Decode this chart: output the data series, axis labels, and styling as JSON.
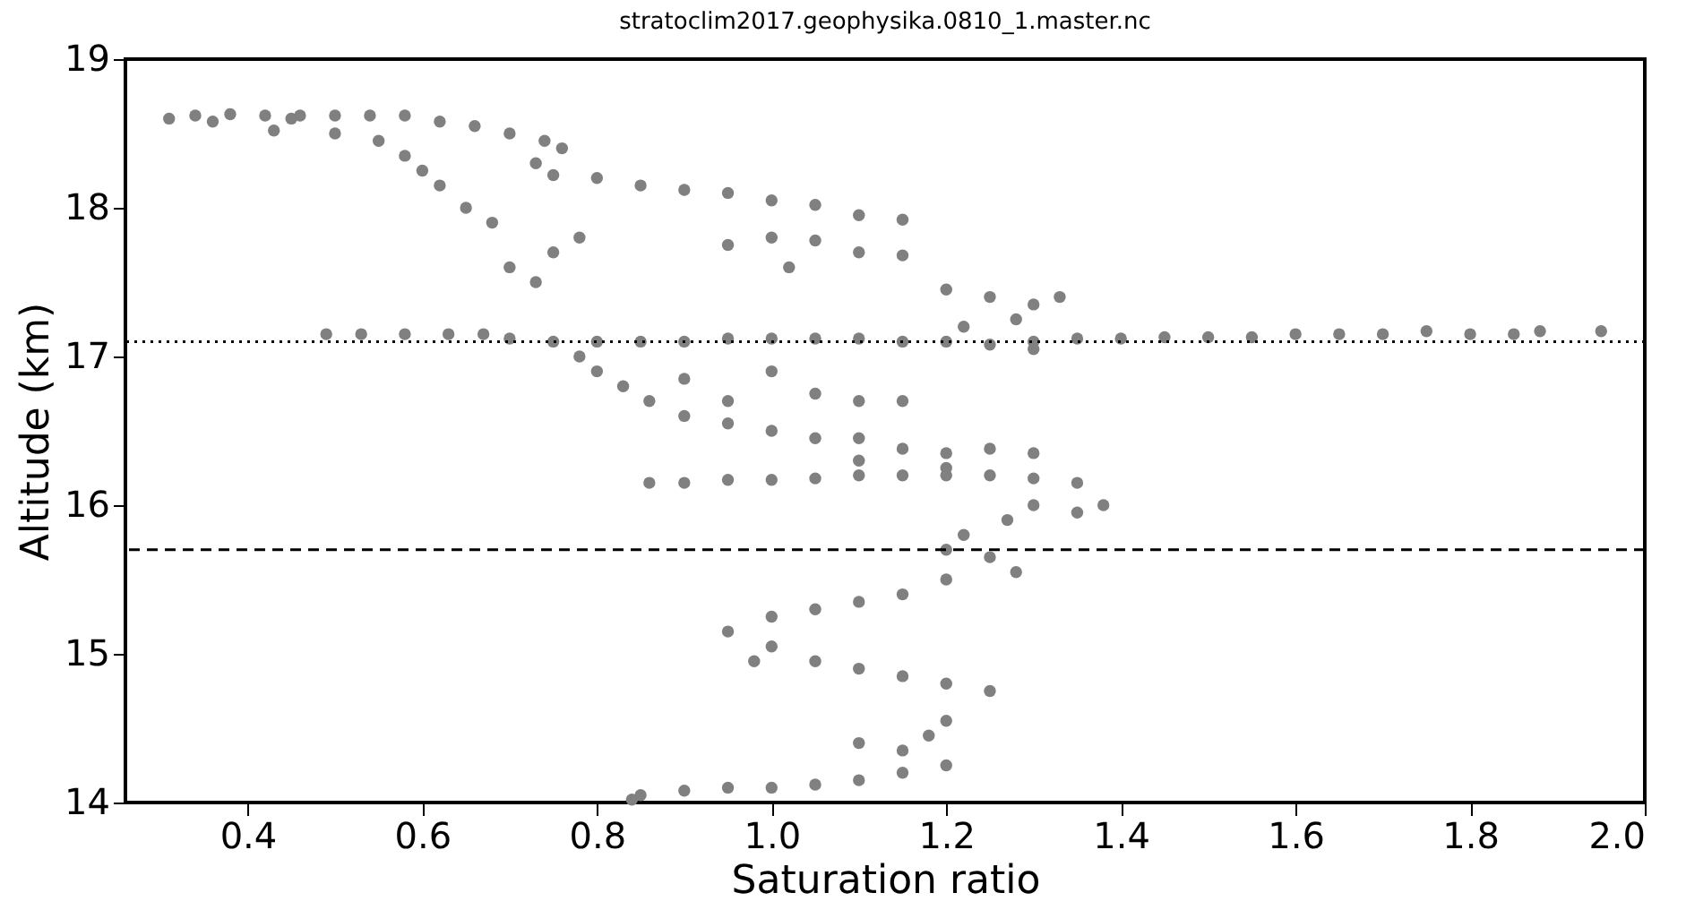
{
  "chart_data": {
    "type": "scatter",
    "title": "stratoclim2017.geophysika.0810_1.master.nc",
    "xlabel": "Saturation ratio",
    "ylabel": "Altitude (km)",
    "xlim": [
      0.26,
      2.0
    ],
    "xticks": [
      0.4,
      0.6,
      0.8,
      {
        "value": 1,
        "label": "1.0"
      },
      1.2,
      1.4,
      1.6,
      1.8,
      {
        "value": 2,
        "label": "2.0"
      }
    ],
    "ylim": [
      14,
      19
    ],
    "yticks": [
      14,
      15,
      16,
      17,
      18,
      19
    ],
    "grid": false,
    "marker": "circle",
    "ref_lines": [
      {
        "axis": "y",
        "value": 17.1,
        "color": "#000000",
        "line_style": "dotted"
      },
      {
        "axis": "y",
        "value": 15.7,
        "color": "#000000",
        "line_style": "dashed"
      }
    ],
    "series": [
      {
        "color": "#808080",
        "x": [
          0.31,
          0.34,
          0.38,
          0.42,
          0.46,
          0.5,
          0.54,
          0.58,
          0.36,
          0.45,
          0.43,
          0.5,
          0.55,
          0.58,
          0.6,
          0.62,
          0.65,
          0.68,
          0.62,
          0.66,
          0.7,
          0.74,
          0.76,
          0.73,
          0.75,
          0.8,
          0.85,
          0.9,
          0.95,
          1.0,
          1.05,
          1.1,
          1.15,
          0.7,
          0.73,
          0.75,
          0.78,
          1.0,
          0.95,
          1.05,
          1.02,
          1.1,
          1.15,
          1.2,
          1.25,
          1.3,
          1.33,
          1.28,
          0.49,
          0.53,
          0.58,
          0.63,
          0.67,
          0.7,
          0.75,
          0.8,
          0.85,
          0.9,
          0.95,
          1.0,
          1.05,
          1.1,
          1.15,
          1.2,
          1.25,
          1.3,
          1.35,
          1.4,
          1.45,
          1.5,
          1.55,
          1.6,
          1.65,
          1.7,
          1.75,
          1.8,
          1.85,
          1.88,
          1.95,
          1.3,
          1.22,
          0.78,
          0.8,
          0.83,
          0.86,
          0.9,
          0.95,
          1.0,
          1.05,
          0.9,
          1.0,
          1.05,
          1.1,
          1.15,
          0.95,
          1.1,
          1.15,
          1.2,
          1.25,
          1.3,
          1.1,
          1.2,
          0.86,
          0.9,
          0.95,
          1.0,
          1.05,
          1.1,
          1.15,
          1.2,
          1.25,
          1.3,
          1.35,
          1.38,
          1.35,
          1.3,
          1.27,
          1.22,
          1.2,
          1.25,
          1.28,
          1.2,
          1.15,
          1.1,
          1.05,
          1.0,
          0.95,
          1.0,
          0.98,
          1.05,
          1.1,
          1.15,
          1.2,
          1.25,
          1.2,
          1.18,
          1.15,
          1.1,
          1.2,
          1.15,
          1.1,
          1.05,
          1.0,
          0.95,
          0.9,
          0.85,
          0.84
        ],
        "values": [
          18.6,
          18.62,
          18.63,
          18.62,
          18.62,
          18.62,
          18.62,
          18.62,
          18.58,
          18.6,
          18.52,
          18.5,
          18.45,
          18.35,
          18.25,
          18.15,
          18.0,
          17.9,
          18.58,
          18.55,
          18.5,
          18.45,
          18.4,
          18.3,
          18.22,
          18.2,
          18.15,
          18.12,
          18.1,
          18.05,
          18.02,
          17.95,
          17.92,
          17.6,
          17.5,
          17.7,
          17.8,
          17.8,
          17.75,
          17.78,
          17.6,
          17.7,
          17.68,
          17.45,
          17.4,
          17.35,
          17.4,
          17.25,
          17.15,
          17.15,
          17.15,
          17.15,
          17.15,
          17.12,
          17.1,
          17.1,
          17.1,
          17.1,
          17.12,
          17.12,
          17.12,
          17.12,
          17.1,
          17.1,
          17.08,
          17.1,
          17.12,
          17.12,
          17.13,
          17.13,
          17.13,
          17.15,
          17.15,
          17.15,
          17.17,
          17.15,
          17.15,
          17.17,
          17.17,
          17.05,
          17.2,
          17.0,
          16.9,
          16.8,
          16.7,
          16.6,
          16.55,
          16.5,
          16.45,
          16.85,
          16.9,
          16.75,
          16.7,
          16.7,
          16.7,
          16.45,
          16.38,
          16.35,
          16.38,
          16.35,
          16.3,
          16.25,
          16.15,
          16.15,
          16.17,
          16.17,
          16.18,
          16.2,
          16.2,
          16.2,
          16.2,
          16.18,
          16.15,
          16.0,
          15.95,
          16.0,
          15.9,
          15.8,
          15.7,
          15.65,
          15.55,
          15.5,
          15.4,
          15.35,
          15.3,
          15.25,
          15.15,
          15.05,
          14.95,
          14.95,
          14.9,
          14.85,
          14.8,
          14.75,
          14.55,
          14.45,
          14.35,
          14.4,
          14.25,
          14.2,
          14.15,
          14.12,
          14.1,
          14.1,
          14.08,
          14.05,
          14.02
        ]
      }
    ]
  }
}
